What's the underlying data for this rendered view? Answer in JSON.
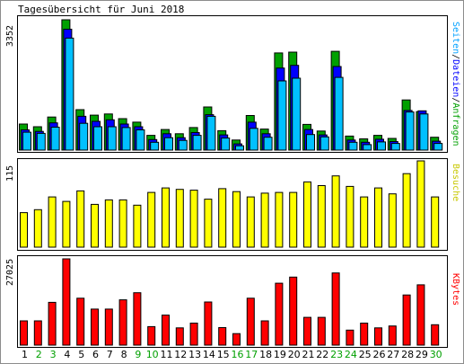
{
  "title": "Tagesübersicht für Juni 2018",
  "colors": {
    "hits": "#00a000",
    "files": "#0000ff",
    "pages": "#00c0ff",
    "visits": "#ffff00",
    "kbytes": "#ff0000",
    "weekday_label": "#000000",
    "weekend_label": "#00a000",
    "frame": "#000000"
  },
  "legend": {
    "top_seiten": "Seiten",
    "top_sep1": "/",
    "top_dateien": "Dateien",
    "top_sep2": "/",
    "top_anfragen": "Anfragen",
    "middle": "Besuche",
    "bottom": "KBytes"
  },
  "chart_data": [
    {
      "type": "bar",
      "title": "Seiten/Dateien/Anfragen",
      "ymax_label": "3352",
      "ylim": [
        0,
        3352
      ],
      "categories": [
        "1",
        "2",
        "3",
        "4",
        "5",
        "6",
        "7",
        "8",
        "9",
        "10",
        "11",
        "12",
        "13",
        "14",
        "15",
        "16",
        "17",
        "18",
        "19",
        "20",
        "21",
        "22",
        "23",
        "24",
        "25",
        "26",
        "27",
        "28",
        "29",
        "30"
      ],
      "series": [
        {
          "name": "Anfragen",
          "values": [
            670,
            600,
            850,
            3352,
            1040,
            900,
            930,
            810,
            720,
            380,
            530,
            420,
            580,
            1110,
            500,
            260,
            890,
            540,
            2500,
            2520,
            660,
            490,
            2540,
            360,
            290,
            380,
            300,
            1290,
            990,
            330
          ]
        },
        {
          "name": "Dateien",
          "values": [
            520,
            480,
            700,
            3110,
            870,
            740,
            780,
            670,
            600,
            270,
            420,
            320,
            450,
            910,
            390,
            160,
            720,
            420,
            2110,
            2180,
            530,
            390,
            2150,
            260,
            200,
            280,
            220,
            1020,
            1010,
            230
          ]
        },
        {
          "name": "Seiten",
          "values": [
            460,
            430,
            590,
            2880,
            690,
            600,
            600,
            580,
            520,
            200,
            320,
            250,
            380,
            870,
            310,
            110,
            560,
            330,
            1780,
            1850,
            400,
            340,
            1870,
            200,
            140,
            210,
            170,
            980,
            930,
            170
          ]
        }
      ]
    },
    {
      "type": "bar",
      "title": "Besuche",
      "ymax_label": "115",
      "ylim": [
        0,
        115
      ],
      "categories": [
        "1",
        "2",
        "3",
        "4",
        "5",
        "6",
        "7",
        "8",
        "9",
        "10",
        "11",
        "12",
        "13",
        "14",
        "15",
        "16",
        "17",
        "18",
        "19",
        "20",
        "21",
        "22",
        "23",
        "24",
        "25",
        "26",
        "27",
        "28",
        "29",
        "30"
      ],
      "series": [
        {
          "name": "Besuche",
          "values": [
            46,
            50,
            67,
            61,
            75,
            57,
            63,
            63,
            56,
            73,
            79,
            77,
            76,
            64,
            78,
            74,
            67,
            72,
            73,
            73,
            87,
            82,
            95,
            81,
            67,
            79,
            71,
            98,
            115,
            67
          ]
        }
      ]
    },
    {
      "type": "bar",
      "title": "KBytes",
      "ymax_label": "27025",
      "ylim": [
        0,
        27025
      ],
      "categories": [
        "1",
        "2",
        "3",
        "4",
        "5",
        "6",
        "7",
        "8",
        "9",
        "10",
        "11",
        "12",
        "13",
        "14",
        "15",
        "16",
        "17",
        "18",
        "19",
        "20",
        "21",
        "22",
        "23",
        "24",
        "25",
        "26",
        "27",
        "28",
        "29",
        "30"
      ],
      "series": [
        {
          "name": "KBytes",
          "values": [
            7600,
            7600,
            13400,
            27025,
            14700,
            11300,
            11300,
            14200,
            16400,
            5800,
            9400,
            5400,
            6900,
            13500,
            5500,
            3600,
            14700,
            7600,
            19400,
            21300,
            8700,
            8700,
            22600,
            4700,
            6900,
            5400,
            6000,
            15700,
            18900,
            6400
          ]
        }
      ]
    }
  ],
  "days": [
    "1",
    "2",
    "3",
    "4",
    "5",
    "6",
    "7",
    "8",
    "9",
    "10",
    "11",
    "12",
    "13",
    "14",
    "15",
    "16",
    "17",
    "18",
    "19",
    "20",
    "21",
    "22",
    "23",
    "24",
    "25",
    "26",
    "27",
    "28",
    "29",
    "30"
  ],
  "weekend_days": [
    "2",
    "3",
    "9",
    "10",
    "16",
    "17",
    "23",
    "24",
    "30"
  ]
}
